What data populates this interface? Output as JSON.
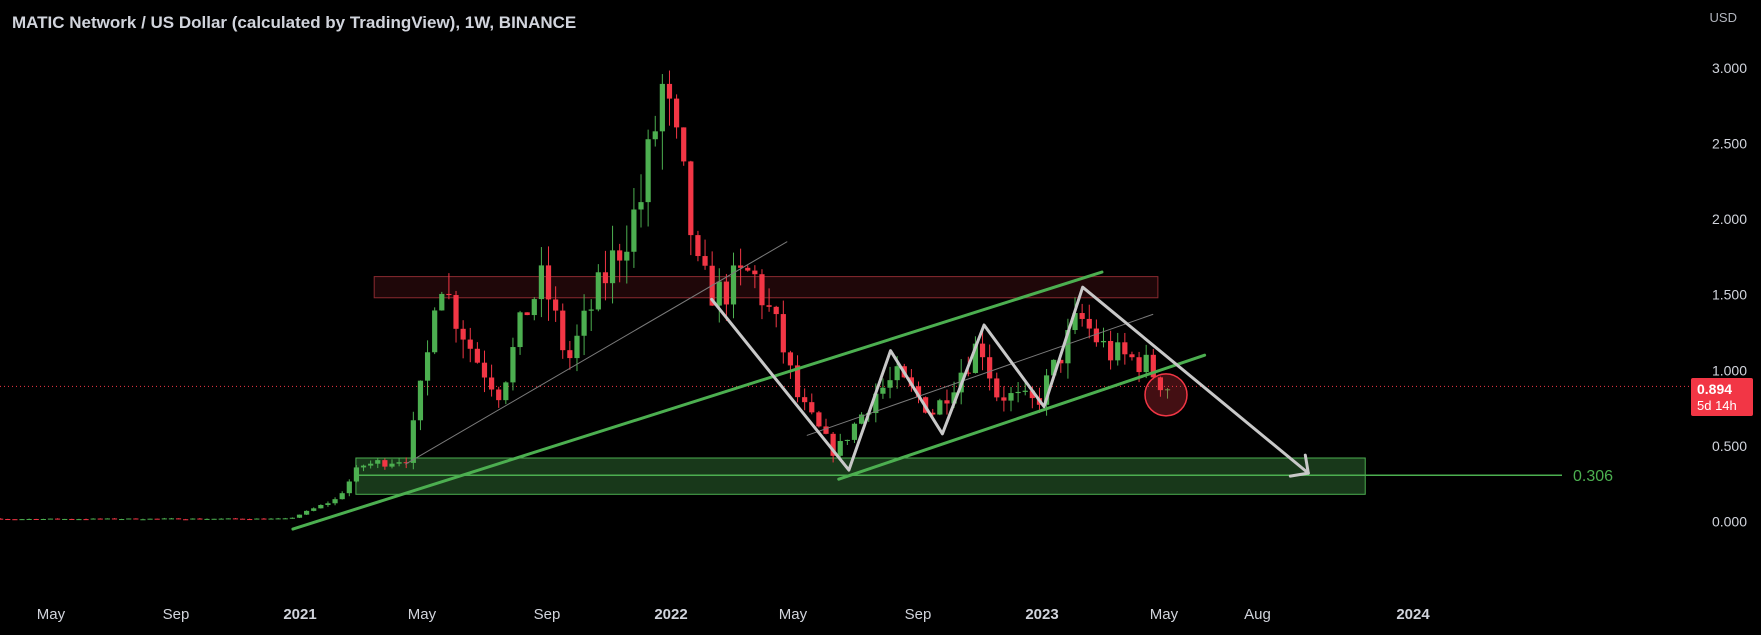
{
  "header": {
    "title": "MATIC Network / US Dollar (calculated by TradingView), 1W, BINANCE",
    "currency": "USD"
  },
  "price_badge": {
    "price": "0.894",
    "countdown": "5d 14h"
  },
  "annotation_label": "0.306",
  "colors": {
    "up": "#4caf50",
    "down": "#f23645",
    "trend": "#4caf50",
    "pattern": "#c8c8c8"
  },
  "chart_data": {
    "type": "candlestick",
    "title": "MATIC Network / US Dollar (calculated by TradingView), 1W, BINANCE",
    "ylabel": "USD",
    "ylim": [
      -0.4,
      3.4
    ],
    "y_ticks": [
      "3.000",
      "2.500",
      "2.000",
      "1.500",
      "1.000",
      "0.500",
      "0.000"
    ],
    "x_ticks": [
      {
        "label": "May",
        "date": "2020-05-01",
        "bold": false
      },
      {
        "label": "Sep",
        "date": "2020-09-01",
        "bold": false
      },
      {
        "label": "2021",
        "date": "2021-01-01",
        "bold": true
      },
      {
        "label": "May",
        "date": "2021-05-01",
        "bold": false
      },
      {
        "label": "Sep",
        "date": "2021-09-01",
        "bold": false
      },
      {
        "label": "2022",
        "date": "2022-01-01",
        "bold": true
      },
      {
        "label": "May",
        "date": "2022-05-01",
        "bold": false
      },
      {
        "label": "Sep",
        "date": "2022-09-01",
        "bold": false
      },
      {
        "label": "2023",
        "date": "2023-01-01",
        "bold": true
      },
      {
        "label": "May",
        "date": "2023-05-01",
        "bold": false
      },
      {
        "label": "Aug",
        "date": "2023-08-01",
        "bold": false
      },
      {
        "label": "2024",
        "date": "2024-01-01",
        "bold": true
      }
    ],
    "current_price": 0.894,
    "anchors": [
      {
        "date": "2020-01-01",
        "close": 0.015
      },
      {
        "date": "2020-09-01",
        "close": 0.018
      },
      {
        "date": "2020-12-25",
        "close": 0.018
      },
      {
        "date": "2021-02-10",
        "close": 0.15
      },
      {
        "date": "2021-03-05",
        "close": 0.37
      },
      {
        "date": "2021-04-20",
        "close": 0.42
      },
      {
        "date": "2021-05-10",
        "close": 1.1
      },
      {
        "date": "2021-05-20",
        "close": 1.7
      },
      {
        "date": "2021-06-01",
        "close": 1.45
      },
      {
        "date": "2021-06-25",
        "close": 1.1
      },
      {
        "date": "2021-07-20",
        "close": 0.85
      },
      {
        "date": "2021-08-15",
        "close": 1.4
      },
      {
        "date": "2021-09-01",
        "close": 1.6
      },
      {
        "date": "2021-09-25",
        "close": 1.05
      },
      {
        "date": "2021-10-20",
        "close": 1.45
      },
      {
        "date": "2021-11-10",
        "close": 1.75
      },
      {
        "date": "2021-12-05",
        "close": 2.1
      },
      {
        "date": "2021-12-27",
        "close": 2.85
      },
      {
        "date": "2022-01-15",
        "close": 2.3
      },
      {
        "date": "2022-02-01",
        "close": 1.6
      },
      {
        "date": "2022-02-20",
        "close": 1.5
      },
      {
        "date": "2022-03-25",
        "close": 1.65
      },
      {
        "date": "2022-04-20",
        "close": 1.25
      },
      {
        "date": "2022-05-10",
        "close": 0.8
      },
      {
        "date": "2022-06-15",
        "close": 0.45
      },
      {
        "date": "2022-07-25",
        "close": 0.85
      },
      {
        "date": "2022-08-15",
        "close": 0.95
      },
      {
        "date": "2022-09-20",
        "close": 0.72
      },
      {
        "date": "2022-11-05",
        "close": 1.2
      },
      {
        "date": "2022-11-20",
        "close": 0.85
      },
      {
        "date": "2022-12-30",
        "close": 0.78
      },
      {
        "date": "2023-02-10",
        "close": 1.35
      },
      {
        "date": "2023-03-10",
        "close": 1.12
      },
      {
        "date": "2023-04-15",
        "close": 1.05
      },
      {
        "date": "2023-05-05",
        "close": 0.894
      }
    ],
    "zones": [
      {
        "type": "resistance",
        "from": "2021-03-15",
        "to": "2023-04-25",
        "low": 1.48,
        "high": 1.62
      },
      {
        "type": "support",
        "from": "2021-02-25",
        "to": "2023-11-15",
        "low": 0.18,
        "high": 0.42
      }
    ],
    "target": 0.306,
    "trendlines": [
      {
        "name": "rising-trend",
        "from": [
          "2020-12-25",
          -0.05
        ],
        "to": [
          "2023-03-01",
          1.65
        ]
      },
      {
        "name": "channel-bottom",
        "from": [
          "2022-06-15",
          0.28
        ],
        "to": [
          "2023-06-10",
          1.1
        ]
      },
      {
        "name": "faint-trend",
        "from": [
          "2021-04-15",
          0.38
        ],
        "to": [
          "2022-04-25",
          1.85
        ]
      },
      {
        "name": "faint-trend-2",
        "from": [
          "2022-05-15",
          0.57
        ],
        "to": [
          "2023-04-20",
          1.37
        ]
      }
    ],
    "pattern_path": [
      [
        "2022-02-10",
        1.47
      ],
      [
        "2022-06-25",
        0.34
      ],
      [
        "2022-08-05",
        1.13
      ],
      [
        "2022-09-25",
        0.58
      ],
      [
        "2022-11-05",
        1.3
      ],
      [
        "2023-01-03",
        0.76
      ],
      [
        "2023-02-10",
        1.55
      ],
      [
        "2023-09-20",
        0.32
      ]
    ],
    "marker": {
      "date": "2023-05-03",
      "price": 0.97
    }
  }
}
